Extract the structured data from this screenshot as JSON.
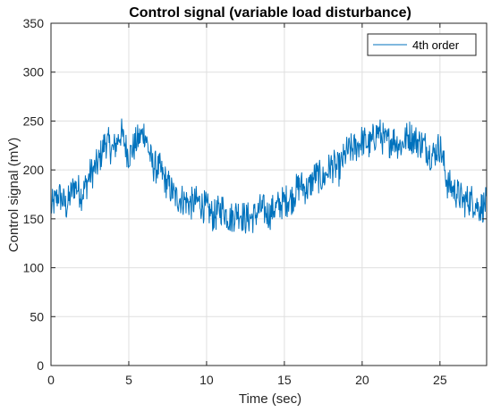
{
  "chart_data": {
    "type": "line",
    "title": "Control signal (variable load disturbance)",
    "xlabel": "Time (sec)",
    "ylabel": "Control signal (mV)",
    "xlim": [
      0,
      28
    ],
    "ylim": [
      0,
      350
    ],
    "x_ticks": [
      0,
      5,
      10,
      15,
      20,
      25
    ],
    "y_ticks": [
      0,
      50,
      100,
      150,
      200,
      250,
      300,
      350
    ],
    "x_tick_labels": [
      "0",
      "5",
      "10",
      "15",
      "20",
      "25"
    ],
    "y_tick_labels": [
      "0",
      "50",
      "100",
      "150",
      "200",
      "250",
      "300",
      "350"
    ],
    "grid": true,
    "legend_position": "top-right",
    "line_color": "#0072BD",
    "series": [
      {
        "name": "4th order",
        "x": [
          0,
          0.5,
          1,
          1.5,
          2,
          2.5,
          3,
          3.5,
          4,
          4.5,
          5,
          5.5,
          6,
          6.5,
          7,
          7.5,
          8,
          8.5,
          9,
          9.5,
          10,
          10.5,
          11,
          11.5,
          12,
          12.5,
          13,
          13.5,
          14,
          14.5,
          15,
          15.5,
          16,
          16.5,
          17,
          17.5,
          18,
          18.5,
          19,
          19.5,
          20,
          20.5,
          21,
          21.5,
          22,
          22.5,
          23,
          23.5,
          24,
          24.5,
          25,
          25.5,
          26,
          26.5,
          27,
          27.5,
          28
        ],
        "values": [
          160,
          175,
          162,
          185,
          175,
          195,
          205,
          230,
          220,
          238,
          215,
          228,
          240,
          205,
          200,
          185,
          172,
          170,
          165,
          168,
          160,
          152,
          162,
          150,
          158,
          150,
          152,
          160,
          155,
          162,
          168,
          172,
          185,
          180,
          195,
          190,
          205,
          200,
          218,
          222,
          230,
          225,
          240,
          228,
          232,
          225,
          236,
          230,
          226,
          215,
          225,
          185,
          178,
          168,
          170,
          162,
          165
        ],
        "noise_amplitude": 18
      }
    ]
  }
}
